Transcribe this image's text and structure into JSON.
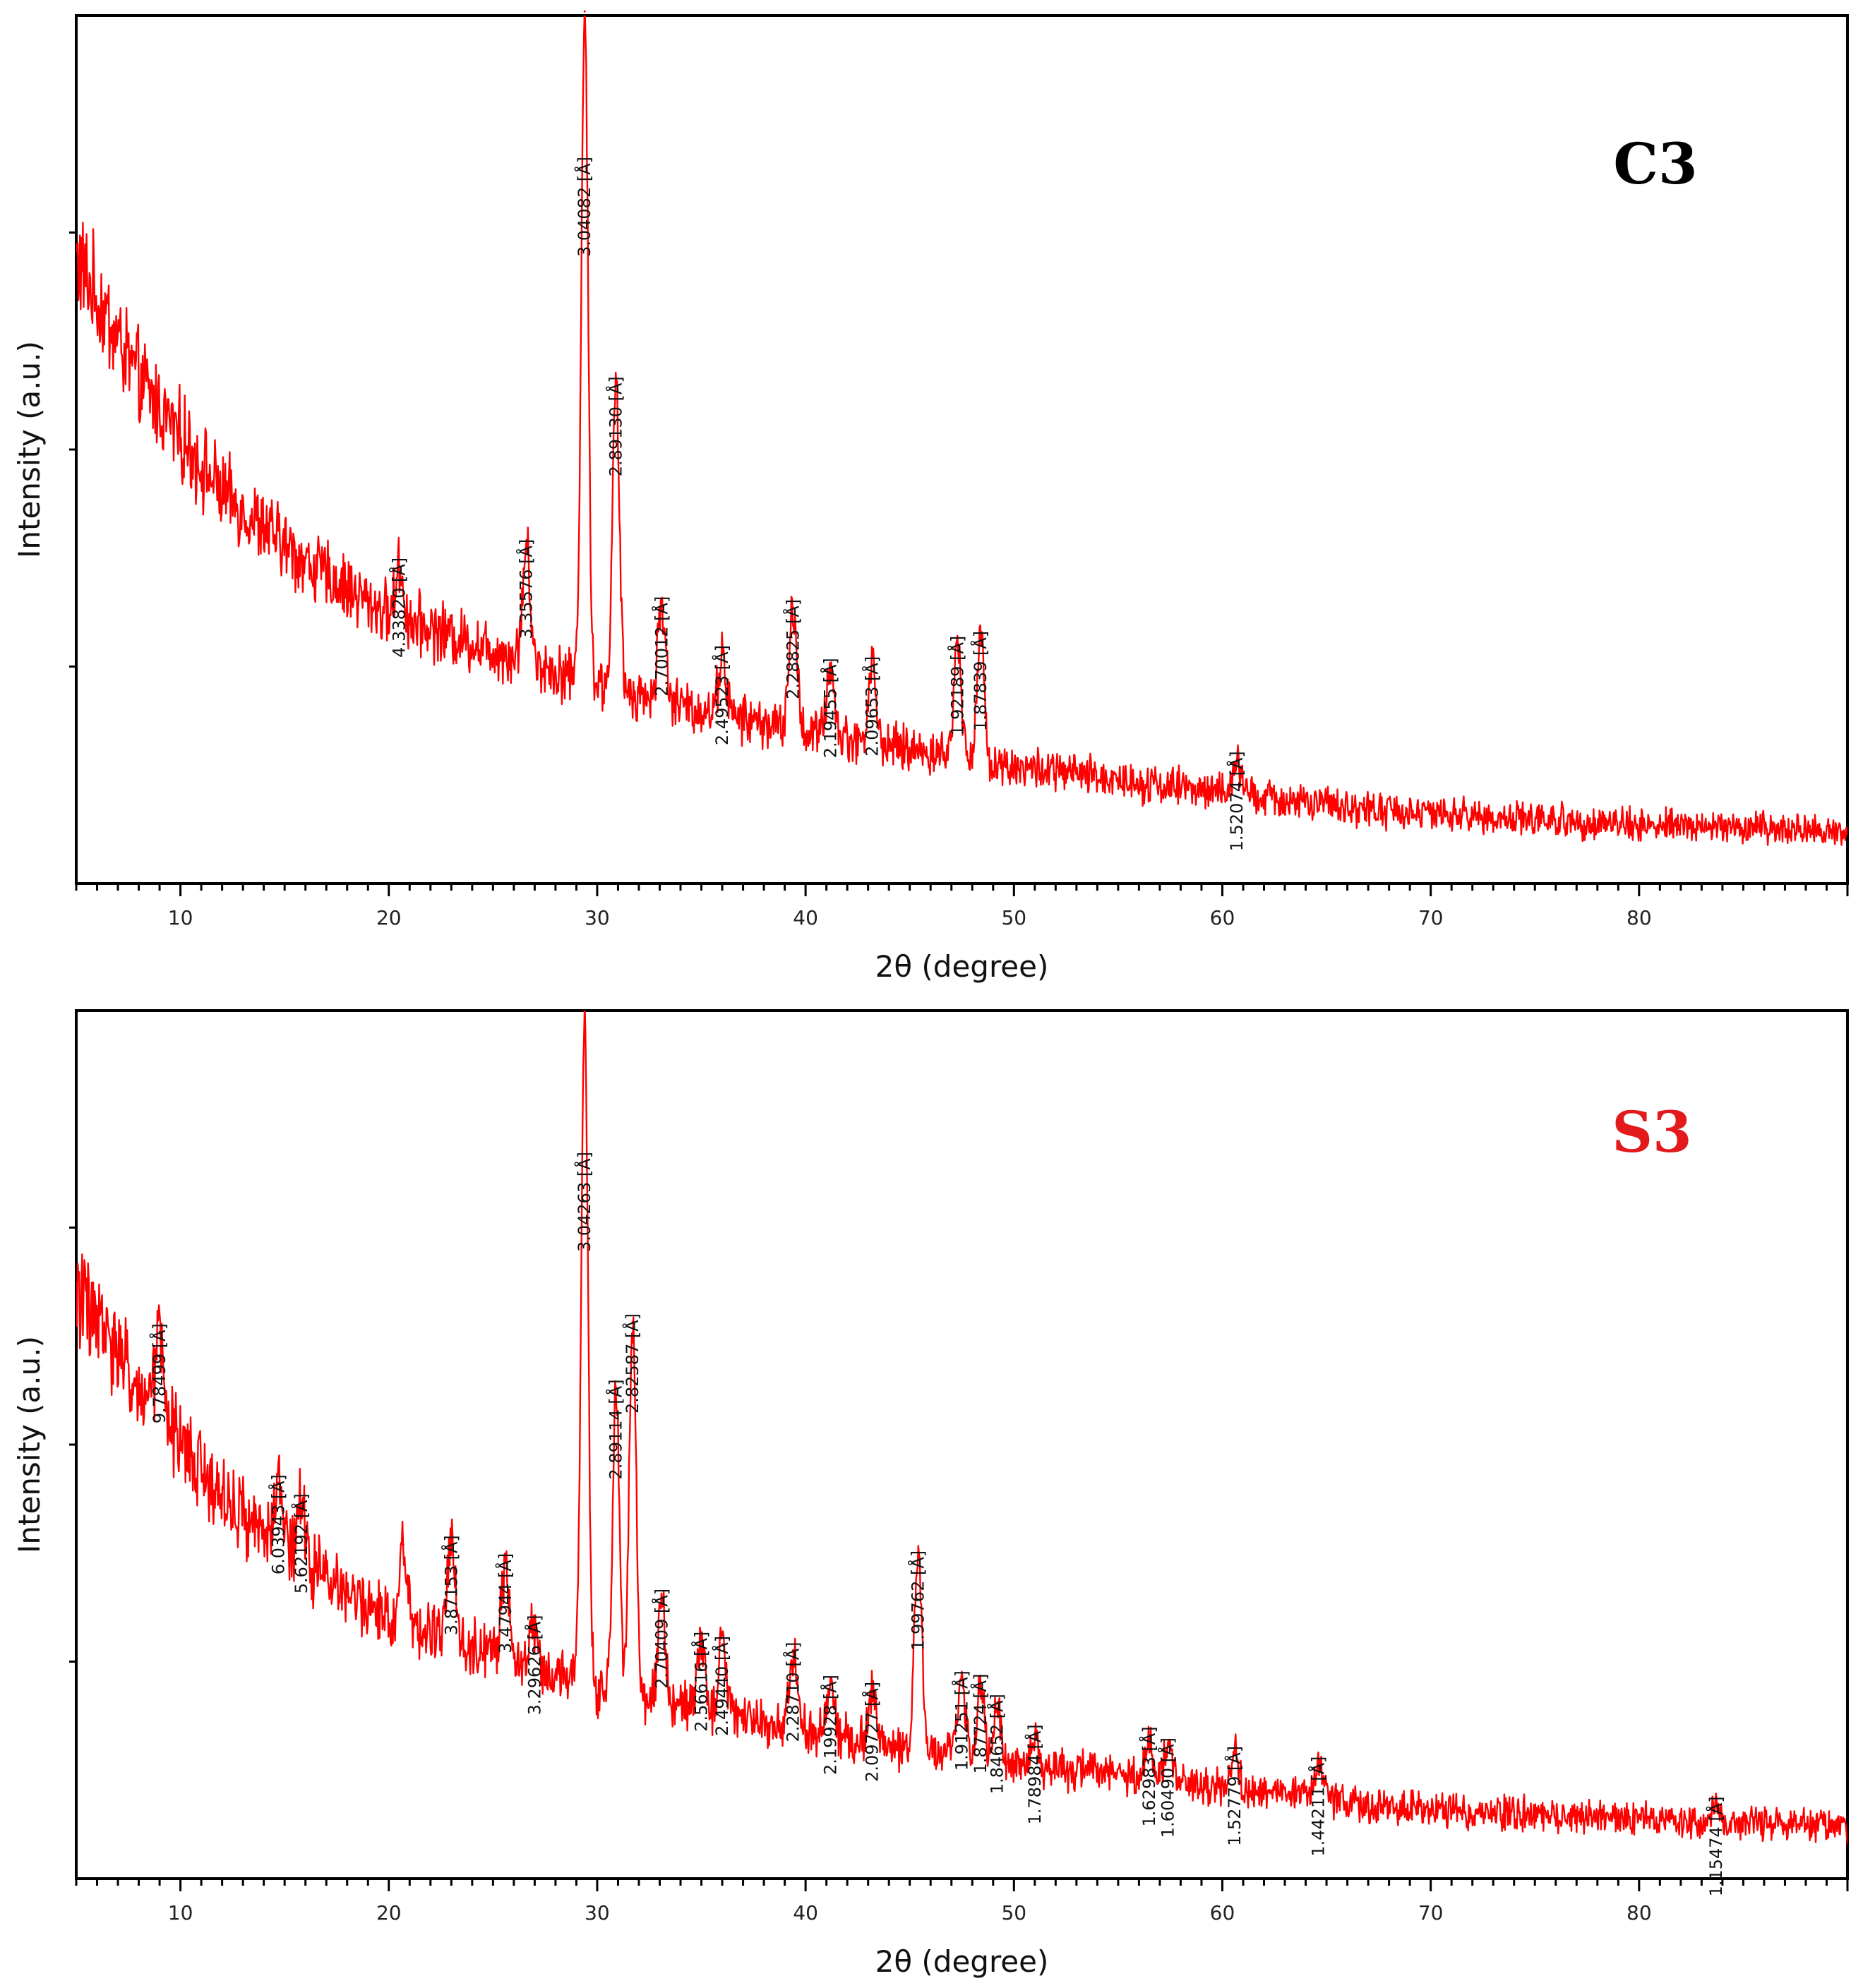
{
  "colors": {
    "pattern": "#ff0000",
    "axis": "#000000",
    "c3_title": "#000000",
    "s3_title": "#e31a1c"
  },
  "chart_data": [
    {
      "type": "line",
      "sample": "C3",
      "xlabel": "2θ (degree)",
      "ylabel": "Intensity (a.u.)",
      "xlim": [
        5,
        90
      ],
      "ylim": [
        0,
        100
      ],
      "x_ticks": [
        10,
        20,
        30,
        40,
        50,
        60,
        70,
        80
      ],
      "background": [
        [
          5,
          72
        ],
        [
          8,
          58
        ],
        [
          12,
          45
        ],
        [
          16,
          37
        ],
        [
          20,
          31
        ],
        [
          25,
          27
        ],
        [
          30,
          23
        ],
        [
          35,
          20
        ],
        [
          40,
          17.5
        ],
        [
          45,
          15.5
        ],
        [
          50,
          13.5
        ],
        [
          55,
          12
        ],
        [
          60,
          10.5
        ],
        [
          65,
          9
        ],
        [
          70,
          8
        ],
        [
          80,
          6.8
        ],
        [
          90,
          6
        ]
      ],
      "peaks": [
        {
          "x": 20.5,
          "height": 6,
          "label": "4.33820 [Å]"
        },
        {
          "x": 26.6,
          "height": 13,
          "label": "3.35576 [Å]"
        },
        {
          "x": 29.4,
          "height": 77,
          "label": "3.04082 [Å]"
        },
        {
          "x": 30.9,
          "height": 35,
          "label": "2.89130 [Å]"
        },
        {
          "x": 33.1,
          "height": 11,
          "label": "2.70012 [Å]"
        },
        {
          "x": 36.0,
          "height": 7,
          "label": "2.49523 [Å]"
        },
        {
          "x": 39.4,
          "height": 14,
          "label": "2.28825 [Å]"
        },
        {
          "x": 41.2,
          "height": 8,
          "label": "2.19455 [Å]"
        },
        {
          "x": 43.2,
          "height": 9,
          "label": "2.09653 [Å]"
        },
        {
          "x": 47.3,
          "height": 13,
          "label": "1.92189 [Å]"
        },
        {
          "x": 48.4,
          "height": 14,
          "label": "1.87839 [Å]"
        },
        {
          "x": 60.7,
          "height": 4,
          "label": "1.52074 [Å]"
        }
      ]
    },
    {
      "type": "line",
      "sample": "S3",
      "xlabel": "2θ (degree)",
      "ylabel": "Intensity (a.u.)",
      "xlim": [
        5,
        90
      ],
      "ylim": [
        0,
        100
      ],
      "x_ticks": [
        10,
        20,
        30,
        40,
        50,
        60,
        70,
        80
      ],
      "background": [
        [
          5,
          68
        ],
        [
          8,
          56
        ],
        [
          12,
          44
        ],
        [
          16,
          36
        ],
        [
          20,
          30
        ],
        [
          25,
          26
        ],
        [
          30,
          22
        ],
        [
          35,
          19.5
        ],
        [
          40,
          17
        ],
        [
          45,
          15
        ],
        [
          50,
          13
        ],
        [
          55,
          12
        ],
        [
          60,
          10.5
        ],
        [
          65,
          9
        ],
        [
          70,
          8
        ],
        [
          80,
          6.8
        ],
        [
          90,
          6
        ]
      ],
      "peaks": [
        {
          "x": 9.0,
          "height": 10,
          "label": "9.78499 [Å]"
        },
        {
          "x": 14.7,
          "height": 7,
          "label": "6.03943 [Å]"
        },
        {
          "x": 15.8,
          "height": 7,
          "label": "5.62192 [Å]"
        },
        {
          "x": 20.7,
          "height": 9,
          "label": ""
        },
        {
          "x": 23.0,
          "height": 11,
          "label": "3.87153 [Å]"
        },
        {
          "x": 25.6,
          "height": 11,
          "label": "3.47944 [Å]"
        },
        {
          "x": 27.0,
          "height": 5,
          "label": "3.29626 [Å]"
        },
        {
          "x": 29.4,
          "height": 77,
          "label": "3.04263 [Å]"
        },
        {
          "x": 30.9,
          "height": 35,
          "label": "2.89114 [Å]"
        },
        {
          "x": 31.7,
          "height": 43,
          "label": "2.82587 [Å]"
        },
        {
          "x": 33.1,
          "height": 12,
          "label": "2.70409 [Å]"
        },
        {
          "x": 35.0,
          "height": 8,
          "label": "2.56616 [Å]"
        },
        {
          "x": 36.0,
          "height": 8,
          "label": "2.49440 [Å]"
        },
        {
          "x": 39.4,
          "height": 9,
          "label": "2.28710 [Å]"
        },
        {
          "x": 41.2,
          "height": 6,
          "label": "2.19928 [Å]"
        },
        {
          "x": 43.2,
          "height": 6,
          "label": "2.09727 [Å]"
        },
        {
          "x": 45.4,
          "height": 22,
          "label": "1.99762 [Å]"
        },
        {
          "x": 47.5,
          "height": 9,
          "label": "1.91251 [Å]"
        },
        {
          "x": 48.4,
          "height": 9,
          "label": "1.87724 [Å]"
        },
        {
          "x": 49.2,
          "height": 7,
          "label": "1.84652 [Å]"
        },
        {
          "x": 51.0,
          "height": 4,
          "label": "1.78984 [Å]"
        },
        {
          "x": 56.5,
          "height": 5,
          "label": "1.62983 [Å]"
        },
        {
          "x": 57.4,
          "height": 4,
          "label": "1.60490 [Å]"
        },
        {
          "x": 60.6,
          "height": 4,
          "label": "1.52779 [Å]"
        },
        {
          "x": 64.6,
          "height": 4,
          "label": "1.44211 [Å]"
        },
        {
          "x": 83.7,
          "height": 2,
          "label": "1.15474 [Å]"
        }
      ]
    }
  ]
}
